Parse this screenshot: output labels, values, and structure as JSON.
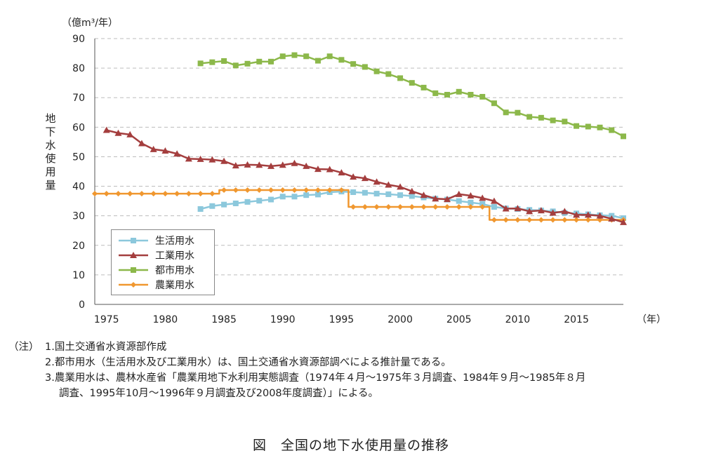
{
  "chart_data": {
    "type": "line",
    "title": "図　全国の地下水使用量の推移",
    "unit_label": "（億m³/年）",
    "ylabel": "地下水使用量",
    "xlabel": "（年）",
    "ylim": [
      0,
      90
    ],
    "xlim": [
      1974,
      2019
    ],
    "y_ticks": [
      0,
      10,
      20,
      30,
      40,
      50,
      60,
      70,
      80,
      90
    ],
    "x_ticks": [
      1975,
      1980,
      1985,
      1990,
      1995,
      2000,
      2005,
      2010,
      2015
    ],
    "grid": true,
    "legend_position": "bottom-left",
    "series": [
      {
        "name": "生活用水",
        "color": "#8cc8dc",
        "marker": "square",
        "step": false,
        "x": [
          1983,
          1984,
          1985,
          1986,
          1987,
          1988,
          1989,
          1990,
          1991,
          1992,
          1993,
          1994,
          1995,
          1996,
          1997,
          1998,
          1999,
          2000,
          2001,
          2002,
          2003,
          2004,
          2005,
          2006,
          2007,
          2008,
          2009,
          2010,
          2011,
          2012,
          2013,
          2014,
          2015,
          2016,
          2017,
          2018,
          2019
        ],
        "values": [
          32.3,
          33.3,
          33.8,
          34.2,
          34.7,
          35.1,
          35.5,
          36.5,
          36.5,
          37.0,
          37.2,
          38.0,
          38.2,
          38.0,
          37.8,
          37.5,
          37.3,
          37.0,
          36.7,
          36.2,
          35.8,
          35.5,
          35.0,
          34.5,
          34.0,
          33.0,
          32.5,
          32.3,
          32.0,
          31.8,
          31.5,
          31.0,
          30.8,
          30.5,
          30.2,
          30.0,
          29.2
        ]
      },
      {
        "name": "工業用水",
        "color": "#a43e3e",
        "marker": "triangle",
        "step": false,
        "x": [
          1975,
          1976,
          1977,
          1978,
          1979,
          1980,
          1981,
          1982,
          1983,
          1984,
          1985,
          1986,
          1987,
          1988,
          1989,
          1990,
          1991,
          1992,
          1993,
          1994,
          1995,
          1996,
          1997,
          1998,
          1999,
          2000,
          2001,
          2002,
          2003,
          2004,
          2005,
          2006,
          2007,
          2008,
          2009,
          2010,
          2011,
          2012,
          2013,
          2014,
          2015,
          2016,
          2017,
          2018,
          2019
        ],
        "values": [
          59.0,
          58.0,
          57.5,
          54.5,
          52.5,
          52.0,
          51.0,
          49.3,
          49.2,
          49.0,
          48.5,
          47.0,
          47.3,
          47.2,
          46.8,
          47.2,
          47.8,
          46.8,
          45.8,
          45.7,
          44.6,
          43.2,
          42.7,
          41.5,
          40.5,
          39.8,
          38.3,
          37.0,
          35.8,
          35.6,
          37.3,
          36.8,
          36.0,
          35.0,
          32.4,
          32.5,
          31.5,
          31.8,
          31.0,
          31.5,
          30.3,
          30.3,
          30.0,
          29.0,
          27.8
        ]
      },
      {
        "name": "都市用水",
        "color": "#8cb84a",
        "marker": "square",
        "step": false,
        "x": [
          1983,
          1984,
          1985,
          1986,
          1987,
          1988,
          1989,
          1990,
          1991,
          1992,
          1993,
          1994,
          1995,
          1996,
          1997,
          1998,
          1999,
          2000,
          2001,
          2002,
          2003,
          2004,
          2005,
          2006,
          2007,
          2008,
          2009,
          2010,
          2011,
          2012,
          2013,
          2014,
          2015,
          2016,
          2017,
          2018,
          2019
        ],
        "values": [
          81.6,
          82.0,
          82.4,
          80.9,
          81.5,
          82.2,
          82.2,
          84.0,
          84.4,
          84.0,
          82.5,
          84.0,
          82.8,
          81.4,
          80.4,
          78.9,
          78.0,
          76.6,
          75.0,
          73.4,
          71.5,
          71.0,
          72.0,
          71.0,
          70.3,
          68.1,
          65.0,
          64.9,
          63.5,
          63.2,
          62.3,
          61.9,
          60.4,
          60.2,
          59.9,
          59.0,
          56.9
        ]
      },
      {
        "name": "農業用水",
        "color": "#f0972f",
        "marker": "diamond",
        "step": true,
        "x": [
          1974,
          1975,
          1976,
          1977,
          1978,
          1979,
          1980,
          1981,
          1982,
          1983,
          1984,
          1985,
          1986,
          1987,
          1988,
          1989,
          1990,
          1991,
          1992,
          1993,
          1994,
          1995,
          1996,
          1997,
          1998,
          1999,
          2000,
          2001,
          2002,
          2003,
          2004,
          2005,
          2006,
          2007,
          2008,
          2009,
          2010,
          2011,
          2012,
          2013,
          2014,
          2015,
          2016,
          2017,
          2018,
          2019
        ],
        "values": [
          37.5,
          37.5,
          37.5,
          37.5,
          37.5,
          37.5,
          37.5,
          37.5,
          37.5,
          37.5,
          37.5,
          38.7,
          38.7,
          38.7,
          38.7,
          38.7,
          38.7,
          38.7,
          38.7,
          38.7,
          38.7,
          38.7,
          33.0,
          33.0,
          33.0,
          33.0,
          33.0,
          33.0,
          33.0,
          33.0,
          33.0,
          33.0,
          33.0,
          33.0,
          28.6,
          28.6,
          28.6,
          28.6,
          28.6,
          28.6,
          28.6,
          28.6,
          28.6,
          28.6,
          28.6,
          28.6
        ]
      }
    ]
  },
  "notes": {
    "head": "（注）",
    "line1": "1.国土交通省水資源部作成",
    "line2": "2.都市用水（生活用水及び工業用水）は、国土交通省水資源部調べによる推計量である。",
    "line3": "3.農業用水は、農林水産省「農業用地下水利用実態調査（1974年４月～1975年３月調査、1984年９月～1985年８月",
    "line4": "調査、1995年10月～1996年９月調査及び2008年度調査）」による。"
  }
}
